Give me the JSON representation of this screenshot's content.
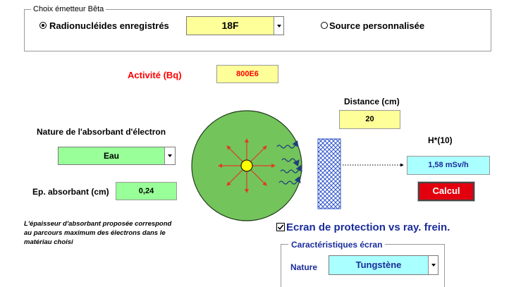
{
  "source_group": {
    "title": "Choix émetteur Bêta",
    "radio_registered": {
      "label": "Radionucléides enregistrés",
      "selected": true
    },
    "radionuclide_select": {
      "value": "18F"
    },
    "radio_custom": {
      "label": "Source personnalisée",
      "selected": false
    }
  },
  "activity": {
    "label": "Activité (Bq)",
    "value": "800E6"
  },
  "distance": {
    "label": "Distance (cm)",
    "value": "20"
  },
  "absorber": {
    "nature_label": "Nature de l'absorbant d'électron",
    "nature_value": "Eau",
    "thickness_label": "Ep. absorbant (cm)",
    "thickness_value": "0,24",
    "note_line1": "L'épaisseur d'absorbant proposée correspond",
    "note_line2": "au parcours maximum des électrons dans le",
    "note_line3": "matériau choisi"
  },
  "dose": {
    "label": "H*(10)",
    "value": "1,58 mSv/h"
  },
  "calc_button": {
    "label": "Calcul"
  },
  "protection": {
    "label": "Ecran de protection vs ray. frein.",
    "checked": true
  },
  "screen_group": {
    "title": "Caractéristiques écran",
    "nature_label": "Nature",
    "nature_value": "Tungstène"
  },
  "colors": {
    "yellow_field": "#ffff99",
    "green_field": "#99ff99",
    "cyan_field": "#aaffff",
    "source_disc": "#74c45c",
    "activity_label": "#ff0000",
    "calc_button": "#e3000e",
    "screen_hatch": "#2f55c8",
    "accent_blue": "#1a2c9b"
  }
}
